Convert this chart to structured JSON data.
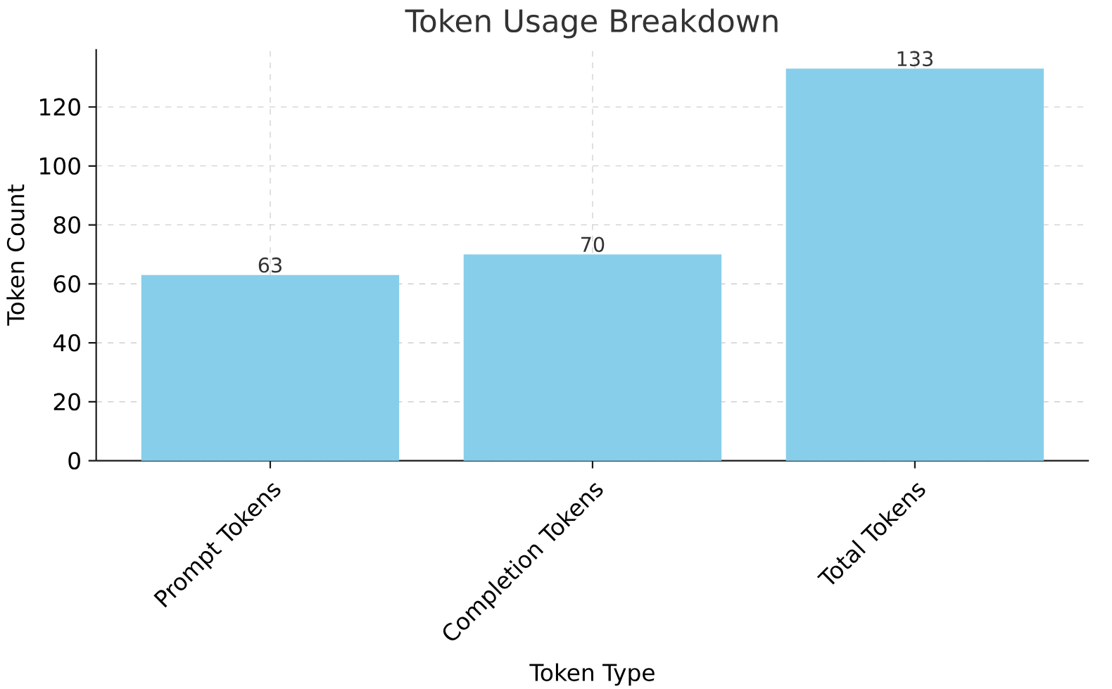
{
  "chart_data": {
    "type": "bar",
    "title": "Token Usage Breakdown",
    "xlabel": "Token Type",
    "ylabel": "Token Count",
    "categories": [
      "Prompt Tokens",
      "Completion Tokens",
      "Total Tokens"
    ],
    "values": [
      63,
      70,
      133
    ],
    "color": "#87ceeb",
    "ylim": [
      0,
      139.65
    ],
    "yticks": [
      0,
      20,
      40,
      60,
      80,
      100,
      120
    ],
    "grid": true,
    "data_labels": true
  }
}
